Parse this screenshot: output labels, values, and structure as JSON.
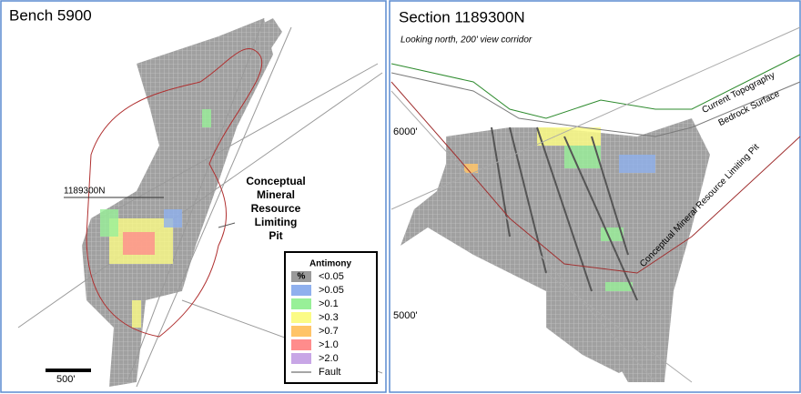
{
  "left_panel": {
    "title": "Bench 5900",
    "section_line_label": "1189300N",
    "pit_label": [
      "Conceptual",
      "Mineral",
      "Resource",
      "Limiting",
      "Pit"
    ],
    "scale_label": "500'",
    "legend": {
      "title": "Antimony",
      "items": [
        {
          "swatch_text": "%",
          "label": "<0.05",
          "color": "#9a9a9a"
        },
        {
          "label": ">0.05",
          "color": "#8fb0ee"
        },
        {
          "label": ">0.1",
          "color": "#98f098"
        },
        {
          "label": ">0.3",
          "color": "#fbfb86"
        },
        {
          "label": ">0.7",
          "color": "#ffc468"
        },
        {
          "label": ">1.0",
          "color": "#ff8c8c"
        },
        {
          "label": ">2.0",
          "color": "#c8a6e6"
        }
      ],
      "fault_label": "Fault",
      "fault_color": "#888888"
    }
  },
  "right_panel": {
    "title": "Section 1189300N",
    "subtitle": "Looking north, 200' view corridor",
    "topography_label": "Current Topography",
    "bedrock_label": "Bedrock Surface",
    "pit_label": "Conceptual Mineral Resource Limiting Pit",
    "elevation_labels": [
      "6000'",
      "5000'"
    ]
  }
}
